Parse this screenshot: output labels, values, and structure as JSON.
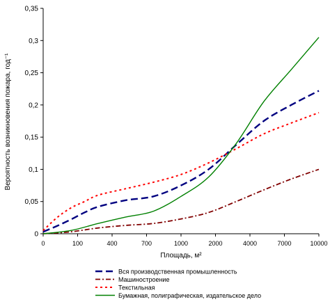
{
  "chart_data": {
    "type": "line",
    "title": "",
    "xlabel": "Площадь, м²",
    "ylabel": "Вероятность возникновения пожара, год⁻¹",
    "categories": [
      "0",
      "100",
      "400",
      "700",
      "1000",
      "2000",
      "4000",
      "7000",
      "10000"
    ],
    "ylim": [
      0,
      0.35
    ],
    "yticks": [
      0,
      0.05,
      0.1,
      0.15,
      0.2,
      0.25,
      0.3,
      0.35
    ],
    "ytick_labels": [
      "0",
      "0,05",
      "0,1",
      "0,15",
      "0,2",
      "0,25",
      "0,3",
      "0,35"
    ],
    "grid": false,
    "legend_position": "bottom",
    "series": [
      {
        "name": "Вся производственная промышленность",
        "color": "#000080",
        "dash": "long-dash",
        "points": [
          [
            0,
            0.003
          ],
          [
            0.5,
            0.012
          ],
          [
            1,
            0.022
          ],
          [
            1.5,
            0.033
          ],
          [
            2,
            0.042
          ],
          [
            3,
            0.052
          ],
          [
            4,
            0.058
          ],
          [
            5,
            0.075
          ],
          [
            6,
            0.1
          ],
          [
            7,
            0.138
          ],
          [
            8,
            0.175
          ],
          [
            9,
            0.2
          ],
          [
            10,
            0.222
          ]
        ]
      },
      {
        "name": "Машиностроение",
        "color": "#800000",
        "dash": "dash-dot",
        "points": [
          [
            0,
            0.0
          ],
          [
            1,
            0.003
          ],
          [
            2,
            0.009
          ],
          [
            3,
            0.013
          ],
          [
            4,
            0.016
          ],
          [
            5,
            0.023
          ],
          [
            6,
            0.033
          ],
          [
            7,
            0.05
          ],
          [
            8,
            0.068
          ],
          [
            9,
            0.085
          ],
          [
            10,
            0.1
          ]
        ]
      },
      {
        "name": "Текстильная",
        "color": "#ff0000",
        "dash": "short-dash",
        "points": [
          [
            0,
            0.005
          ],
          [
            0.5,
            0.025
          ],
          [
            1,
            0.04
          ],
          [
            1.5,
            0.05
          ],
          [
            2,
            0.06
          ],
          [
            3,
            0.07
          ],
          [
            4,
            0.08
          ],
          [
            5,
            0.092
          ],
          [
            6,
            0.11
          ],
          [
            7,
            0.132
          ],
          [
            8,
            0.155
          ],
          [
            9,
            0.172
          ],
          [
            10,
            0.188
          ]
        ]
      },
      {
        "name": "Бумажная, полиграфическая, издательское дело",
        "color": "#008000",
        "dash": "solid",
        "points": [
          [
            0,
            0.0
          ],
          [
            1,
            0.005
          ],
          [
            2,
            0.016
          ],
          [
            3,
            0.026
          ],
          [
            4,
            0.035
          ],
          [
            5,
            0.058
          ],
          [
            6,
            0.088
          ],
          [
            7,
            0.14
          ],
          [
            8,
            0.205
          ],
          [
            9,
            0.255
          ],
          [
            10,
            0.305
          ]
        ]
      }
    ]
  }
}
